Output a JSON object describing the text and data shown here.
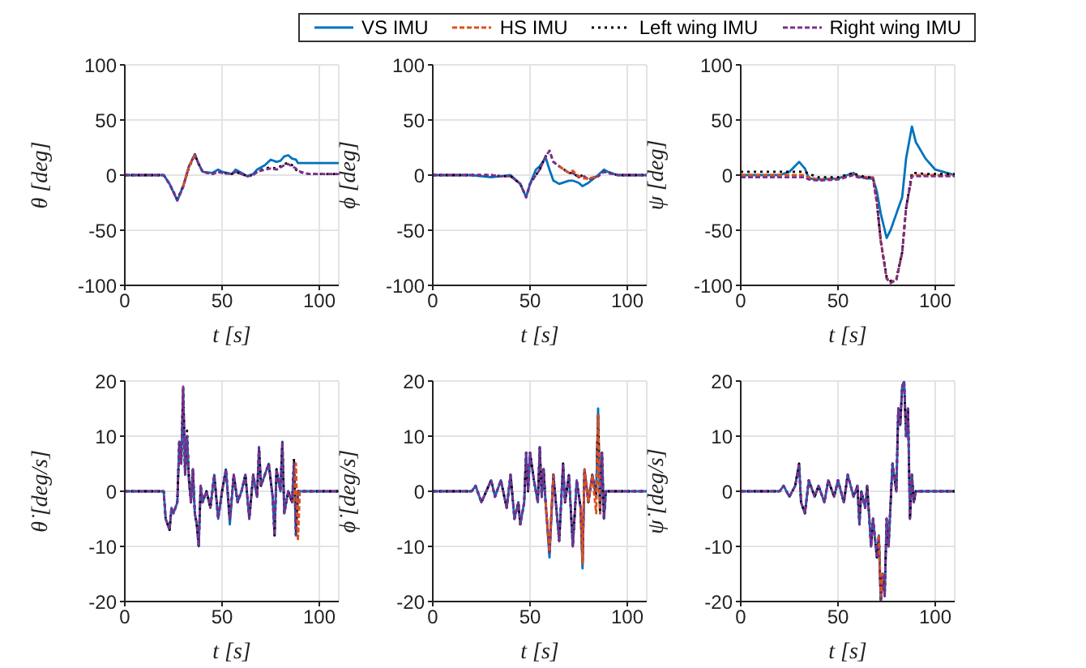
{
  "chart_data": [
    {
      "type": "line",
      "ylabel": "θ [deg]",
      "xlabel": "t [s]",
      "legend": "top",
      "grid": true,
      "marker": "none",
      "xlim": [
        0,
        110
      ],
      "xticks": [
        0,
        50,
        100
      ],
      "ylim": [
        -100,
        100
      ],
      "yticks": [
        -100,
        -50,
        0,
        50,
        100
      ],
      "x": [
        0,
        20,
        23,
        27,
        30,
        33,
        36,
        38,
        40,
        45,
        48,
        50,
        55,
        57,
        60,
        63,
        66,
        68,
        72,
        75,
        78,
        80,
        82,
        84,
        86,
        88,
        89,
        92,
        95,
        100,
        110
      ],
      "series": [
        {
          "name": "VS IMU",
          "color": "#0072bd",
          "line_style": "solid",
          "values": [
            0,
            0,
            -8,
            -23,
            -10,
            8,
            19,
            10,
            3,
            2,
            5,
            3,
            1,
            5,
            2,
            -1,
            1,
            5,
            9,
            14,
            12,
            13,
            17,
            18,
            15,
            14,
            11,
            11,
            11,
            11,
            11
          ]
        },
        {
          "name": "HS IMU",
          "color": "#d95319",
          "line_style": "dashed",
          "values": [
            null,
            null,
            null,
            null,
            -10,
            8,
            18,
            null,
            null,
            null,
            null,
            null,
            null,
            null,
            null,
            null,
            null,
            null,
            null,
            null,
            null,
            null,
            null,
            null,
            null,
            null,
            null,
            null,
            null,
            null,
            null
          ]
        },
        {
          "name": "Left wing IMU",
          "color": "#000000",
          "line_style": "dotted",
          "values": [
            0,
            0,
            -8,
            -22,
            -10,
            7,
            18,
            10,
            3,
            1,
            3,
            2,
            1,
            3,
            1,
            -1,
            0,
            3,
            6,
            7,
            6,
            8,
            10,
            11,
            9,
            5,
            3,
            2,
            1,
            1,
            1
          ]
        },
        {
          "name": "Right wing IMU",
          "color": "#7e2f8e",
          "line_style": "dashed",
          "values": [
            0,
            0,
            -8,
            -23,
            -11,
            8,
            19,
            10,
            3,
            1,
            3,
            2,
            1,
            3,
            1,
            -1,
            0,
            3,
            5,
            6,
            5,
            7,
            9,
            10,
            8,
            6,
            4,
            2,
            1,
            1,
            1
          ]
        }
      ]
    },
    {
      "type": "line",
      "ylabel": "ϕ [deg]",
      "xlabel": "t [s]",
      "grid": true,
      "marker": "none",
      "xlim": [
        0,
        110
      ],
      "xticks": [
        0,
        50,
        100
      ],
      "ylim": [
        -100,
        100
      ],
      "yticks": [
        -100,
        -50,
        0,
        50,
        100
      ],
      "x": [
        0,
        20,
        30,
        35,
        40,
        45,
        48,
        50,
        53,
        55,
        58,
        60,
        62,
        65,
        70,
        72,
        75,
        77,
        80,
        85,
        88,
        90,
        95,
        100,
        110
      ],
      "series": [
        {
          "color": "#0072bd",
          "line_style": "solid",
          "values": [
            0,
            0,
            -2,
            -1,
            0,
            -8,
            -20,
            -8,
            5,
            8,
            16,
            5,
            -5,
            -8,
            -5,
            -5,
            -7,
            -10,
            -7,
            0,
            5,
            3,
            0,
            0,
            0
          ]
        },
        {
          "color": "#d95319",
          "line_style": "dashed",
          "values": [
            null,
            null,
            null,
            null,
            null,
            null,
            null,
            null,
            null,
            null,
            null,
            null,
            null,
            8,
            2,
            4,
            -1,
            -3,
            -3,
            -1,
            null,
            null,
            null,
            null,
            null
          ]
        },
        {
          "color": "#000000",
          "line_style": "dotted",
          "values": [
            0,
            0,
            0,
            -1,
            -1,
            -8,
            -20,
            -8,
            0,
            5,
            17,
            22,
            12,
            8,
            2,
            2,
            -2,
            0,
            -4,
            -1,
            3,
            2,
            0,
            0,
            0
          ]
        },
        {
          "color": "#7e2f8e",
          "line_style": "dashed",
          "values": [
            0,
            0,
            0,
            -1,
            -1,
            -8,
            -20,
            -8,
            0,
            5,
            17,
            22,
            12,
            8,
            2,
            2,
            -2,
            0,
            -4,
            -1,
            3,
            2,
            0,
            0,
            0
          ]
        }
      ]
    },
    {
      "type": "line",
      "ylabel": "ψ [deg]",
      "xlabel": "t [s]",
      "grid": true,
      "marker": "none",
      "xlim": [
        0,
        110
      ],
      "xticks": [
        0,
        50,
        100
      ],
      "ylim": [
        -100,
        100
      ],
      "yticks": [
        -100,
        -50,
        0,
        50,
        100
      ],
      "x": [
        0,
        20,
        25,
        30,
        33,
        35,
        40,
        50,
        58,
        60,
        65,
        68,
        70,
        72,
        75,
        77,
        80,
        83,
        85,
        88,
        90,
        95,
        100,
        110
      ],
      "series": [
        {
          "color": "#0072bd",
          "line_style": "solid",
          "values": [
            0,
            0,
            3,
            12,
            6,
            -3,
            -4,
            -3,
            2,
            -1,
            -3,
            -3,
            -15,
            -35,
            -57,
            -50,
            -35,
            -20,
            15,
            44,
            30,
            15,
            5,
            0
          ]
        },
        {
          "color": "#d95319",
          "line_style": "dashed",
          "values": [
            0,
            0,
            0,
            0,
            0,
            -2,
            -4,
            -3,
            1,
            -1,
            -2,
            -2,
            -25,
            -60,
            -93,
            -97,
            -95,
            -70,
            -30,
            0,
            0,
            0,
            0,
            0
          ]
        },
        {
          "color": "#000000",
          "line_style": "dotted",
          "values": [
            3,
            3,
            3,
            3,
            3,
            1,
            -2,
            -2,
            2,
            0,
            -2,
            -2,
            -25,
            -60,
            -92,
            -96,
            -94,
            -70,
            -30,
            2,
            2,
            1,
            1,
            1
          ]
        },
        {
          "color": "#7e2f8e",
          "line_style": "dashed",
          "values": [
            -2,
            -2,
            -2,
            -2,
            -2,
            -4,
            -5,
            -4,
            0,
            -2,
            -3,
            -3,
            -25,
            -60,
            -94,
            -98,
            -95,
            -70,
            -30,
            -1,
            -1,
            -1,
            -1,
            -1
          ]
        }
      ]
    },
    {
      "type": "line",
      "ylabel": "θ̇ [deg/s]",
      "xlabel": "t [s]",
      "grid": true,
      "marker": "none",
      "xlim": [
        0,
        110
      ],
      "xticks": [
        0,
        50,
        100
      ],
      "ylim": [
        -20,
        20
      ],
      "yticks": [
        -20,
        -10,
        0,
        10,
        20
      ],
      "x": [
        0,
        20,
        21,
        23,
        24,
        25,
        27,
        28,
        29,
        30,
        31,
        32,
        33,
        34,
        35,
        36,
        37,
        38,
        39,
        40,
        42,
        44,
        46,
        48,
        50,
        52,
        54,
        56,
        58,
        60,
        62,
        64,
        66,
        68,
        69,
        70,
        72,
        74,
        76,
        77,
        78,
        80,
        81,
        82,
        84,
        86,
        87,
        88,
        89,
        90,
        110
      ],
      "series": [
        {
          "color": "#0072bd",
          "line_style": "solid",
          "values": [
            0,
            0,
            -5,
            -7,
            -3,
            -4,
            -2,
            9,
            5,
            18,
            3,
            10,
            2,
            -2,
            4,
            -4,
            -6,
            -10,
            1,
            -2,
            0,
            -3,
            3,
            -5,
            0,
            4,
            -6,
            3,
            -2,
            0,
            3,
            -5,
            3,
            -1,
            8,
            1,
            3,
            5,
            -1,
            -8,
            4,
            0,
            9,
            -4,
            0,
            -2,
            5,
            -8,
            0,
            0,
            0
          ]
        },
        {
          "color": "#d95319",
          "line_style": "dashed",
          "values": [
            null,
            null,
            null,
            null,
            null,
            null,
            null,
            null,
            null,
            null,
            null,
            null,
            null,
            null,
            null,
            null,
            null,
            null,
            null,
            null,
            null,
            null,
            null,
            null,
            null,
            null,
            null,
            null,
            null,
            null,
            null,
            null,
            null,
            null,
            null,
            null,
            null,
            null,
            null,
            null,
            null,
            null,
            null,
            null,
            null,
            null,
            -2,
            5,
            -9,
            0,
            null
          ]
        },
        {
          "color": "#000000",
          "line_style": "dotted",
          "values": [
            0,
            0,
            -5,
            -7,
            -3,
            -4,
            -2,
            9,
            5,
            19,
            3,
            11,
            2,
            -2,
            4,
            -4,
            -6,
            -10,
            1,
            -2,
            0,
            -3,
            3,
            -5,
            0,
            4,
            -5,
            3,
            -2,
            0,
            3,
            -5,
            3,
            -1,
            8,
            1,
            3,
            5,
            -1,
            -8,
            4,
            0,
            9,
            -4,
            0,
            -2,
            6,
            -8,
            0,
            0,
            0
          ]
        },
        {
          "color": "#7e2f8e",
          "line_style": "dashed",
          "values": [
            0,
            0,
            -5,
            -7,
            -3,
            -4,
            -2,
            9,
            5,
            19,
            3,
            10,
            2,
            -2,
            4,
            -4,
            -6,
            -10,
            1,
            -2,
            0,
            -3,
            3,
            -5,
            0,
            4,
            -5,
            3,
            -2,
            0,
            3,
            -5,
            3,
            -1,
            8,
            1,
            3,
            5,
            -1,
            -8,
            4,
            0,
            9,
            -4,
            0,
            -2,
            5,
            -8,
            0,
            0,
            0
          ]
        }
      ]
    },
    {
      "type": "line",
      "ylabel": "ϕ̇ [deg/s]",
      "xlabel": "t [s]",
      "grid": true,
      "marker": "none",
      "xlim": [
        0,
        110
      ],
      "xticks": [
        0,
        50,
        100
      ],
      "ylim": [
        -20,
        20
      ],
      "yticks": [
        -20,
        -10,
        0,
        10,
        20
      ],
      "x": [
        0,
        20,
        22,
        25,
        30,
        32,
        35,
        38,
        40,
        42,
        44,
        45,
        47,
        48,
        49,
        50,
        52,
        54,
        55,
        56,
        57,
        58,
        60,
        62,
        65,
        67,
        68,
        70,
        72,
        74,
        76,
        77,
        78,
        80,
        82,
        84,
        85,
        86,
        87,
        88,
        89,
        90,
        110
      ],
      "series": [
        {
          "color": "#0072bd",
          "line_style": "solid",
          "values": [
            0,
            0,
            1,
            -2,
            2,
            -1,
            2,
            -3,
            3,
            -5,
            -2,
            -6,
            -2,
            7,
            0,
            7,
            2,
            -2,
            8,
            -1,
            4,
            -2,
            -12,
            3,
            -9,
            5,
            -2,
            3,
            -10,
            2,
            -3,
            -14,
            4,
            -2,
            3,
            -1,
            15,
            -4,
            7,
            -5,
            0,
            0,
            0
          ]
        },
        {
          "color": "#d95319",
          "line_style": "dashed",
          "values": [
            null,
            null,
            null,
            null,
            null,
            null,
            null,
            null,
            null,
            null,
            null,
            null,
            null,
            null,
            null,
            null,
            null,
            null,
            null,
            null,
            null,
            -2,
            -11,
            3,
            null,
            null,
            null,
            null,
            null,
            null,
            -3,
            -13,
            4,
            -2,
            3,
            -4,
            14,
            -4,
            null,
            null,
            null,
            null,
            null
          ]
        },
        {
          "color": "#000000",
          "line_style": "dotted",
          "values": [
            0,
            0,
            1,
            -2,
            2,
            -1,
            2,
            -3,
            3,
            -5,
            -2,
            -6,
            -2,
            7,
            0,
            7,
            2,
            -2,
            8,
            -1,
            4,
            -2,
            -11,
            3,
            -9,
            5,
            -2,
            3,
            -10,
            2,
            -3,
            -13,
            4,
            -2,
            3,
            -1,
            14,
            -4,
            7,
            -5,
            0,
            0,
            0
          ]
        },
        {
          "color": "#7e2f8e",
          "line_style": "dashed",
          "values": [
            0,
            0,
            1,
            -2,
            2,
            -1,
            2,
            -3,
            3,
            -5,
            -2,
            -6,
            -2,
            7,
            0,
            7,
            2,
            -2,
            8,
            -1,
            4,
            -2,
            -11,
            3,
            -9,
            5,
            -2,
            3,
            -10,
            2,
            -3,
            -13,
            4,
            -2,
            3,
            -1,
            14,
            -4,
            7,
            -5,
            0,
            0,
            0
          ]
        }
      ]
    },
    {
      "type": "line",
      "ylabel": "ψ̇ [deg/s]",
      "xlabel": "t [s]",
      "grid": true,
      "marker": "none",
      "xlim": [
        0,
        110
      ],
      "xticks": [
        0,
        50,
        100
      ],
      "ylim": [
        -20,
        20
      ],
      "yticks": [
        -20,
        -10,
        0,
        10,
        20
      ],
      "x": [
        0,
        20,
        22,
        25,
        28,
        30,
        31,
        33,
        35,
        38,
        40,
        43,
        45,
        48,
        50,
        53,
        55,
        58,
        60,
        61,
        62,
        64,
        65,
        67,
        68,
        70,
        71,
        72,
        73,
        74,
        75,
        76,
        78,
        80,
        81,
        82,
        83,
        84,
        85,
        86,
        87,
        88,
        89,
        90,
        110
      ],
      "series": [
        {
          "color": "#0072bd",
          "line_style": "solid",
          "values": [
            0,
            0,
            1,
            -1,
            1,
            5,
            -2,
            -4,
            2,
            -1,
            1,
            -2,
            2,
            -1,
            2,
            -2,
            3,
            -1,
            1,
            -6,
            0,
            -3,
            1,
            -10,
            -5,
            -12,
            -8,
            -20,
            -15,
            -19,
            -5,
            -10,
            5,
            0,
            15,
            12,
            19,
            20,
            10,
            15,
            -5,
            3,
            -2,
            0,
            0
          ]
        },
        {
          "color": "#d95319",
          "line_style": "dashed",
          "values": [
            null,
            null,
            null,
            null,
            null,
            null,
            null,
            null,
            null,
            null,
            null,
            null,
            null,
            null,
            null,
            null,
            null,
            null,
            null,
            null,
            null,
            null,
            null,
            null,
            null,
            null,
            -8,
            -19,
            -15,
            null,
            null,
            null,
            null,
            null,
            null,
            null,
            null,
            null,
            null,
            null,
            null,
            null,
            null,
            null,
            null
          ]
        },
        {
          "color": "#000000",
          "line_style": "dotted",
          "values": [
            0,
            0,
            1,
            -1,
            1,
            5,
            -2,
            -4,
            2,
            -1,
            1,
            -2,
            2,
            -1,
            2,
            -2,
            3,
            -1,
            1,
            -6,
            0,
            -3,
            1,
            -10,
            -5,
            -12,
            -8,
            -20,
            -15,
            -19,
            -5,
            -10,
            5,
            0,
            15,
            12,
            19,
            20,
            10,
            15,
            -5,
            3,
            -2,
            0,
            0
          ]
        },
        {
          "color": "#7e2f8e",
          "line_style": "dashed",
          "values": [
            0,
            0,
            1,
            -1,
            1,
            5,
            -2,
            -4,
            2,
            -1,
            1,
            -2,
            2,
            -1,
            2,
            -2,
            3,
            -1,
            1,
            -6,
            0,
            -3,
            1,
            -10,
            -5,
            -12,
            -8,
            -20,
            -15,
            -19,
            -5,
            -10,
            5,
            0,
            15,
            12,
            19,
            20,
            10,
            15,
            -5,
            3,
            -2,
            0,
            0
          ]
        }
      ]
    }
  ]
}
